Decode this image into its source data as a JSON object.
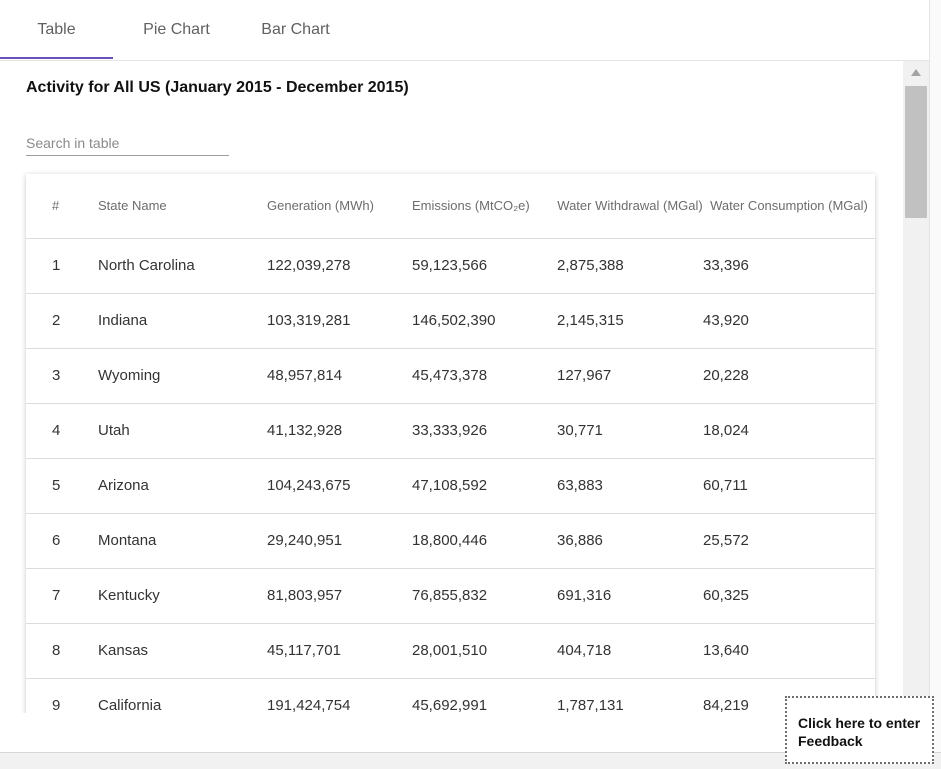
{
  "tabs": [
    {
      "label": "Table",
      "active": true
    },
    {
      "label": "Pie Chart",
      "active": false
    },
    {
      "label": "Bar Chart",
      "active": false
    }
  ],
  "colors": {
    "accent": "#6b4fbb",
    "border": "#dcdcdc",
    "header_text": "#6d6d6d"
  },
  "title": "Activity for All US (January 2015 - December 2015)",
  "search": {
    "placeholder": "Search in table",
    "value": ""
  },
  "table": {
    "headers": [
      "#",
      "State Name",
      "Generation (MWh)",
      "Emissions (MtCO₂e)",
      "Water Withdrawal (MGal)",
      "Water Consumption (MGal)"
    ],
    "rows": [
      [
        "1",
        "North Carolina",
        "122,039,278",
        "59,123,566",
        "2,875,388",
        "33,396"
      ],
      [
        "2",
        "Indiana",
        "103,319,281",
        "146,502,390",
        "2,145,315",
        "43,920"
      ],
      [
        "3",
        "Wyoming",
        "48,957,814",
        "45,473,378",
        "127,967",
        "20,228"
      ],
      [
        "4",
        "Utah",
        "41,132,928",
        "33,333,926",
        "30,771",
        "18,024"
      ],
      [
        "5",
        "Arizona",
        "104,243,675",
        "47,108,592",
        "63,883",
        "60,711"
      ],
      [
        "6",
        "Montana",
        "29,240,951",
        "18,800,446",
        "36,886",
        "25,572"
      ],
      [
        "7",
        "Kentucky",
        "81,803,957",
        "76,855,832",
        "691,316",
        "60,325"
      ],
      [
        "8",
        "Kansas",
        "45,117,701",
        "28,001,510",
        "404,718",
        "13,640"
      ],
      [
        "9",
        "California",
        "191,424,754",
        "45,692,991",
        "1,787,131",
        "84,219"
      ]
    ]
  },
  "feedback": {
    "label": "Click here to enter Feedback"
  },
  "icons": {
    "scroll_up": "triangle-up-icon"
  }
}
